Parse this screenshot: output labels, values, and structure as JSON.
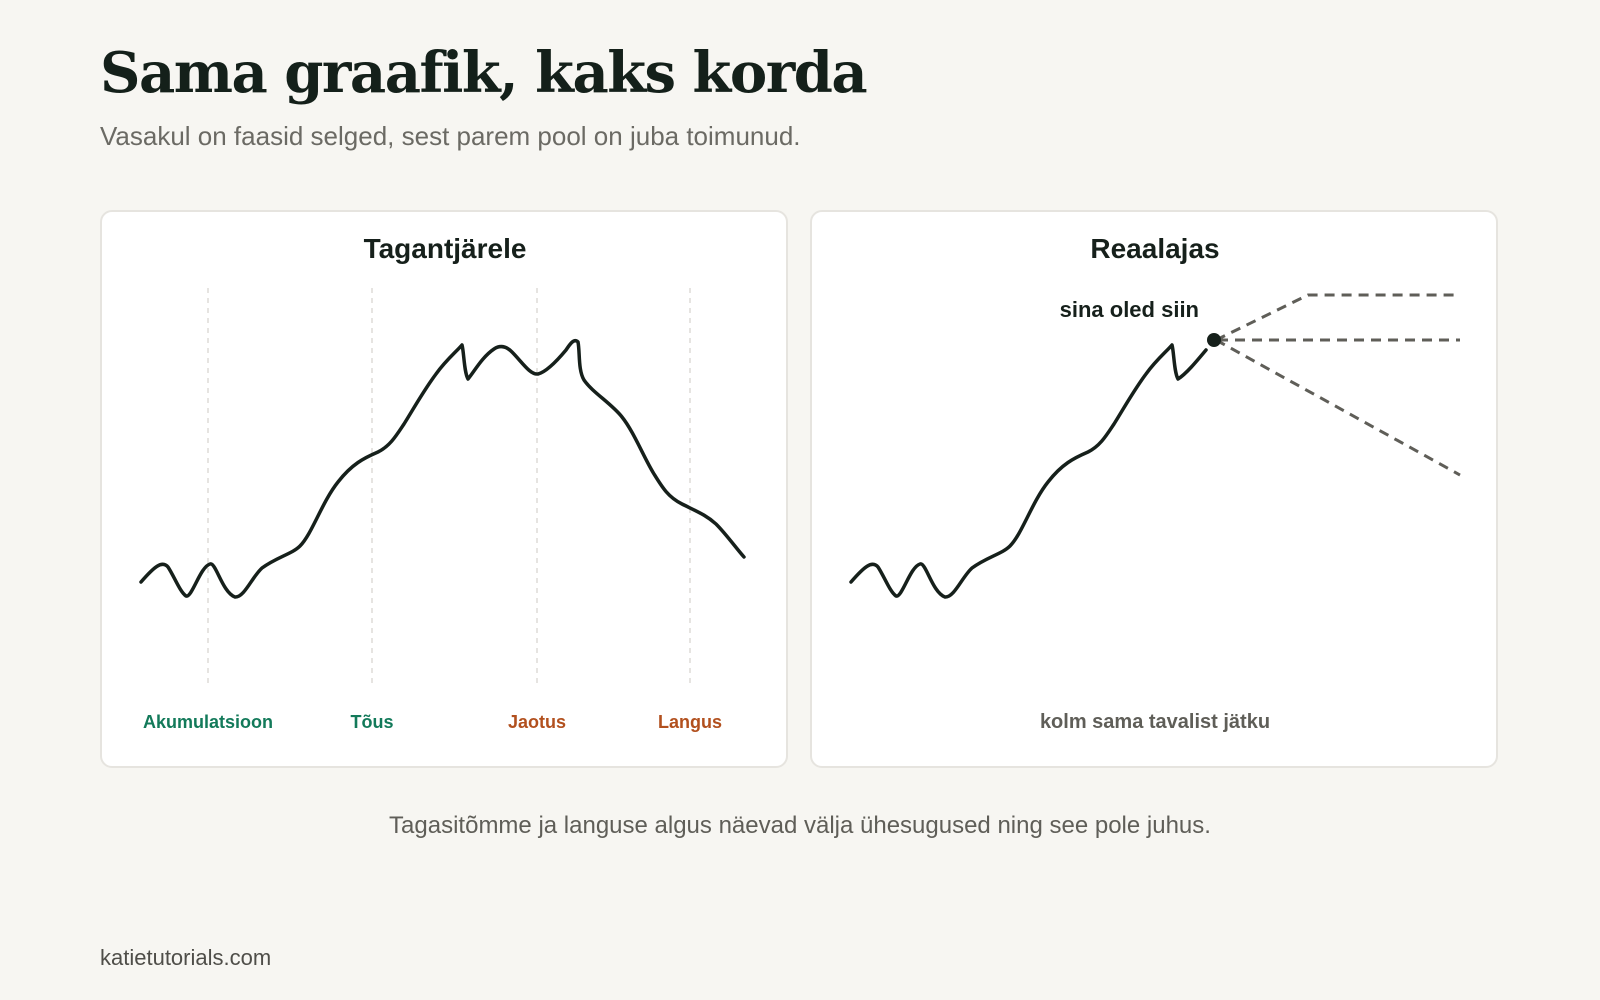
{
  "header": {
    "title": "Sama graafik, kaks korda",
    "subtitle": "Vasakul on faasid selged, sest parem pool on juba toimunud."
  },
  "panels": {
    "left": {
      "title": "Tagantjärele",
      "phases": [
        {
          "label": "Akumulatsioon",
          "color": "#137a5a"
        },
        {
          "label": "Tõus",
          "color": "#137a5a"
        },
        {
          "label": "Jaotus",
          "color": "#b2501e"
        },
        {
          "label": "Langus",
          "color": "#b2501e"
        }
      ]
    },
    "right": {
      "title": "Reaalajas",
      "marker_label": "sina oled siin",
      "caption": "kolm sama tavalist jätku"
    }
  },
  "footer": {
    "note": "Tagasitõmme ja languse algus näevad välja ühesugused ning see pole juhus.",
    "site": "katietutorials.com"
  },
  "colors": {
    "line": "#16201b",
    "dashed": "#5f5e58",
    "accumulation": "#137a5a",
    "decline": "#b2501e",
    "background": "#f7f6f2"
  }
}
